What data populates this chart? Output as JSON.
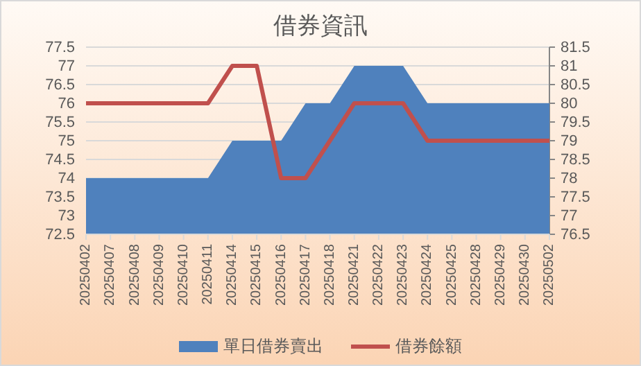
{
  "chart_data": {
    "type": "area",
    "title": "借券資訊",
    "categories": [
      "20250402",
      "20250407",
      "20250408",
      "20250409",
      "20250410",
      "20250411",
      "20250414",
      "20250415",
      "20250416",
      "20250417",
      "20250418",
      "20250421",
      "20250422",
      "20250423",
      "20250424",
      "20250425",
      "20250428",
      "20250429",
      "20250430",
      "20250502"
    ],
    "series": [
      {
        "name": "單日借券賣出",
        "color": "#4f81bd",
        "values": [
          74,
          74,
          74,
          74,
          74,
          74,
          75,
          75,
          75,
          76,
          76,
          77,
          77,
          77,
          76,
          76,
          76,
          76,
          76,
          76
        ]
      },
      {
        "name": "借券餘額",
        "type": "line",
        "axis": "y2",
        "color": "#c0504d",
        "values": [
          80,
          80,
          80,
          80,
          80,
          80,
          81,
          81,
          78,
          78,
          79,
          80,
          80,
          80,
          79,
          79,
          79,
          79,
          79,
          79
        ]
      }
    ],
    "ylim": [
      72.5,
      77.5
    ],
    "yticks": [
      72.5,
      73,
      73.5,
      74,
      74.5,
      75,
      75.5,
      76,
      76.5,
      77,
      77.5
    ],
    "y2lim": [
      76.5,
      81.5
    ],
    "y2ticks": [
      76.5,
      77,
      77.5,
      78,
      78.5,
      79,
      79.5,
      80,
      80.5,
      81,
      81.5
    ],
    "grid": "y",
    "legend": "bottom",
    "marker": "none",
    "line_style": "solid"
  }
}
